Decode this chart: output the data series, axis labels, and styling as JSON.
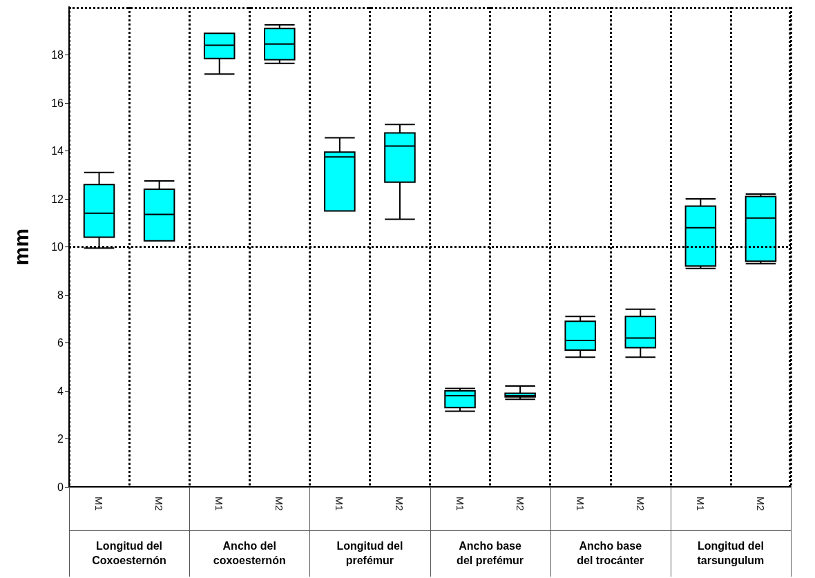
{
  "chart_data": {
    "type": "box",
    "ylabel": "mm",
    "categories": [
      "M1",
      "M2",
      "M1",
      "M2",
      "M1",
      "M2",
      "M1",
      "M2",
      "M1",
      "M2",
      "M1",
      "M2"
    ],
    "series": [
      {
        "color": "#00ffff",
        "boxes": [
          {
            "low": 9.95,
            "q1": 10.4,
            "median": 11.4,
            "q3": 12.6,
            "high": 13.1
          },
          {
            "low": 10.25,
            "q1": 10.25,
            "median": 11.35,
            "q3": 12.4,
            "high": 12.75
          },
          {
            "low": 17.2,
            "q1": 17.85,
            "median": 18.4,
            "q3": 18.9,
            "high": 18.9
          },
          {
            "low": 17.65,
            "q1": 17.8,
            "median": 18.45,
            "q3": 19.1,
            "high": 19.25
          },
          {
            "low": 11.5,
            "q1": 11.5,
            "median": 13.75,
            "q3": 13.95,
            "high": 14.55
          },
          {
            "low": 11.15,
            "q1": 12.7,
            "median": 14.2,
            "q3": 14.75,
            "high": 15.1
          },
          {
            "low": 3.15,
            "q1": 3.3,
            "median": 3.8,
            "q3": 4.0,
            "high": 4.1
          },
          {
            "low": 3.65,
            "q1": 3.75,
            "median": 3.8,
            "q3": 3.9,
            "high": 4.2
          },
          {
            "low": 5.4,
            "q1": 5.7,
            "median": 6.1,
            "q3": 6.9,
            "high": 7.1
          },
          {
            "low": 5.4,
            "q1": 5.8,
            "median": 6.2,
            "q3": 7.1,
            "high": 7.4
          },
          {
            "low": 9.1,
            "q1": 9.2,
            "median": 10.8,
            "q3": 11.7,
            "high": 12.0
          },
          {
            "low": 9.3,
            "q1": 9.4,
            "median": 11.2,
            "q3": 12.1,
            "high": 12.2
          }
        ]
      }
    ],
    "ylim": [
      0,
      20
    ],
    "yticks": [
      0,
      2,
      4,
      6,
      8,
      10,
      12,
      14,
      16,
      18
    ],
    "grid": "x",
    "line_style": "dotted",
    "ref_lines": [
      {
        "axis": "y",
        "value": 10
      }
    ],
    "annotations": [
      "Longitud del\nCoxoesternón",
      "Ancho del\ncoxoesternón",
      "Longitud del\nprefémur",
      "Ancho base\ndel prefémur",
      "Ancho base\ndel trocánter",
      "Longitud del\ntarsungulum"
    ]
  }
}
